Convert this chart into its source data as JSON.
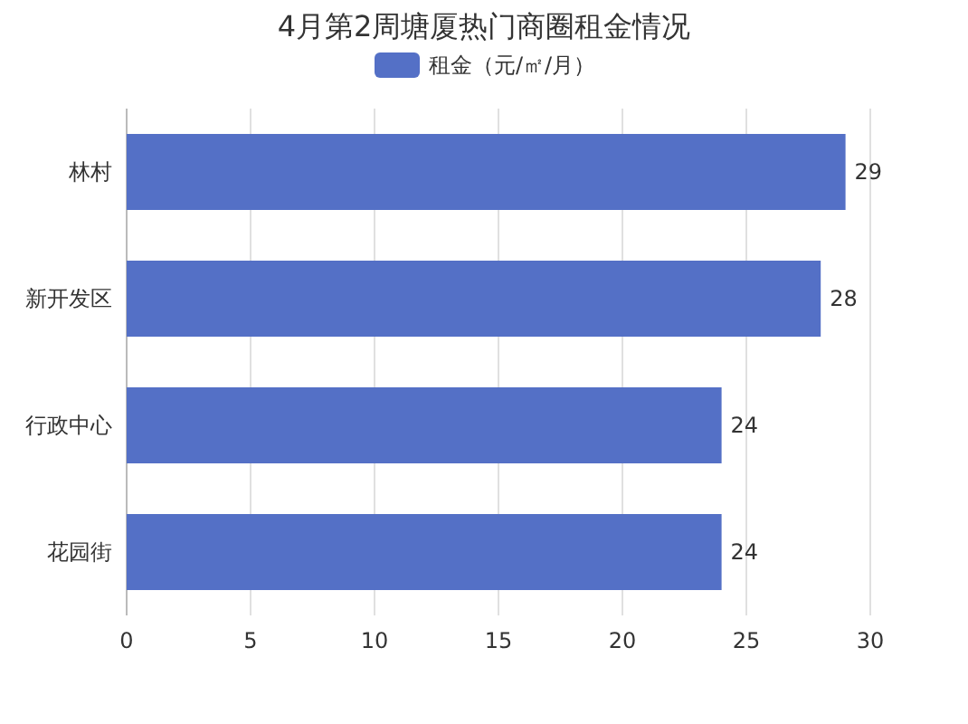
{
  "chart_data": {
    "type": "bar",
    "orientation": "horizontal",
    "title": "4月第2周塘厦热门商圈租金情况",
    "categories": [
      "林村",
      "新开发区",
      "行政中心",
      "花园街"
    ],
    "series": [
      {
        "name": "租金（元/㎡/月）",
        "color": "#5470c6",
        "values": [
          29,
          28,
          24,
          24
        ]
      }
    ],
    "xlim": [
      0,
      30
    ],
    "xticks": [
      0,
      5,
      10,
      15,
      20,
      25,
      30
    ],
    "grid": "x",
    "legend": "top",
    "data_labels": true
  }
}
